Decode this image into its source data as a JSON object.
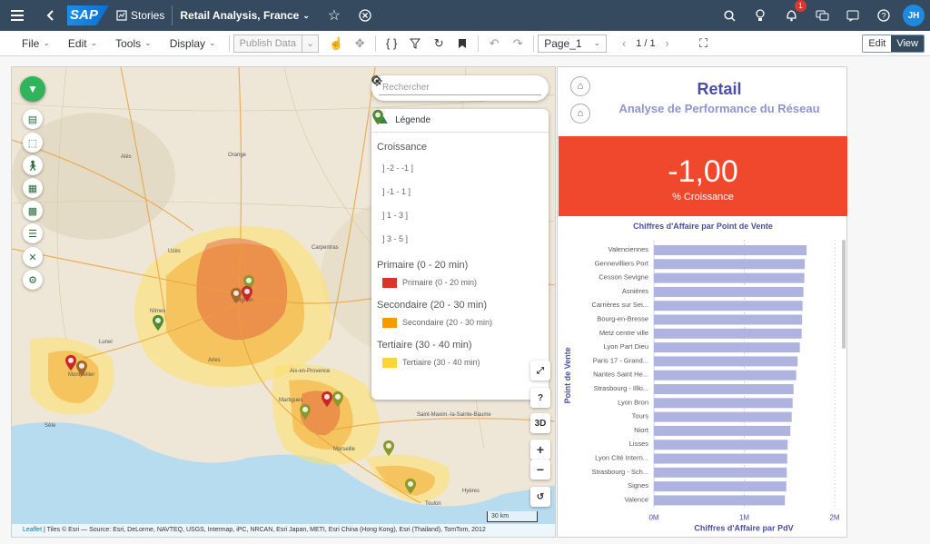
{
  "shell": {
    "menu_icon": "hamburger-icon",
    "back_icon": "chevron-left-icon",
    "logo_text": "SAP",
    "stories_label": "Stories",
    "story_title": "Retail Analysis, France",
    "notification_count": "1",
    "avatar_initials": "JH"
  },
  "toolbar": {
    "menus": [
      "File",
      "Edit",
      "Tools",
      "Display"
    ],
    "publish_label": "Publish Data",
    "page_select": "Page_1",
    "page_counter": "1 / 1",
    "edit_label": "Edit",
    "view_label": "View"
  },
  "map": {
    "search_placeholder": "Rechercher",
    "legend_title": "Légende",
    "growth_title": "Croissance",
    "growth_items": [
      "] -2 - -1 ]",
      "] -1 - 1 ]",
      "] 1 - 3 ]",
      "] 3 - 5 ]"
    ],
    "growth_colors": [
      "#c62828",
      "#a8672a",
      "#8a9a2a",
      "#4f8a2e"
    ],
    "zones": [
      {
        "group": "Primaire (0 - 20 min)",
        "label": "Primaire (0 - 20 min)",
        "color": "#d9342b"
      },
      {
        "group": "Secondaire (20 - 30 min)",
        "label": "Secondaire (20 - 30 min)",
        "color": "#f59a00"
      },
      {
        "group": "Tertiaire (30 - 40 min)",
        "label": "Tertiaire (30 - 40 min)",
        "color": "#ffd43b"
      }
    ],
    "btn_3d": "3D",
    "btn_help": "?",
    "scale": "30 km",
    "attribution_leaflet": "Leaflet",
    "attribution": " | Tiles © Esri — Source: Esri, DeLorme, NAVTEQ, USGS, Intermap, iPC, NRCAN, Esri Japan, METI, Esri China (Hong Kong), Esri (Thailand), TomTom, 2012",
    "places": [
      "Avignon",
      "Montpellier",
      "Marseille",
      "Arles",
      "Nîmes",
      "Aix-en-Provence",
      "Toulon",
      "Martigues",
      "Saint-Maxim.-la-Sainte-Baume",
      "Hyères",
      "Alès",
      "Uzès",
      "Carpentras",
      "Orange",
      "Sète",
      "Lunel"
    ]
  },
  "panel": {
    "title": "Retail",
    "subtitle": "Analyse de Performance du Réseau",
    "kpi_value": "-1,00",
    "kpi_label": "% Croissance"
  },
  "chart_data": {
    "type": "bar",
    "orientation": "horizontal",
    "title": "Chiffres d'Affaire par Point de Vente",
    "xlabel": "Chiffres d'Affaire par PdV",
    "ylabel": "Point de Vente",
    "xlim": [
      0,
      2000000
    ],
    "xticks": [
      "0M",
      "1M",
      "2M"
    ],
    "color": "#aeb3e0",
    "categories": [
      "Valenciennes",
      "Gennevilliers Port",
      "Cesson Sevigne",
      "Asnières",
      "Carrières sur Sei...",
      "Bourg-en-Bresse",
      "Metz centre ville",
      "Lyon Part Dieu",
      "Paris 17 - Grand...",
      "Nantes Saint He...",
      "Strasbourg - Illki...",
      "Lyon Bron",
      "Tours",
      "Niort",
      "Lisses",
      "Lyon Cité Intern...",
      "Strasbourg - Sch...",
      "Signes",
      "Valence"
    ],
    "values": [
      1690000,
      1670000,
      1665000,
      1655000,
      1645000,
      1640000,
      1635000,
      1615000,
      1590000,
      1575000,
      1545000,
      1535000,
      1525000,
      1510000,
      1480000,
      1475000,
      1470000,
      1465000,
      1450000
    ]
  }
}
